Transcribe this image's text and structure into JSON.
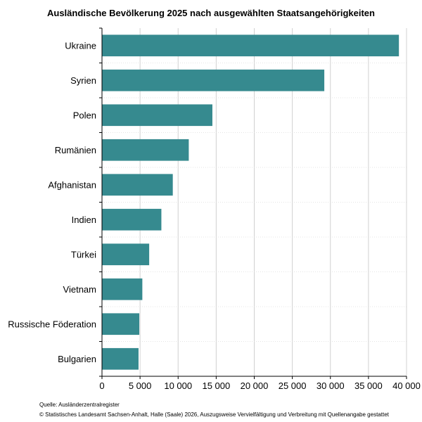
{
  "chart_data": {
    "type": "bar",
    "orientation": "horizontal",
    "title": "Ausländische Bevölkerung 2025 nach ausgewählten Staatsangehörigkeiten",
    "categories": [
      "Ukraine",
      "Syrien",
      "Polen",
      "Rumänien",
      "Afghanistan",
      "Indien",
      "Türkei",
      "Vietnam",
      "Russische Föderation",
      "Bulgarien"
    ],
    "values": [
      39000,
      29200,
      14500,
      11400,
      9300,
      7800,
      6200,
      5300,
      4900,
      4800
    ],
    "xlim": [
      0,
      40000
    ],
    "xticks": [
      0,
      5000,
      10000,
      15000,
      20000,
      25000,
      30000,
      35000,
      40000
    ],
    "xtick_labels": [
      "0",
      "5 000",
      "10 000",
      "15 000",
      "20 000",
      "25 000",
      "30 000",
      "35 000",
      "40 000"
    ],
    "xlabel": "",
    "ylabel": "",
    "grid": "vertical",
    "bar_color": "#368A8F"
  },
  "footer": {
    "source": "Quelle: Ausländerzentralregister",
    "copyright": "© Statistisches Landesamt Sachsen-Anhalt, Halle (Saale) 2026, Auszugsweise Vervielfältigung und Verbreitung mit Quellenangabe gestattet"
  }
}
